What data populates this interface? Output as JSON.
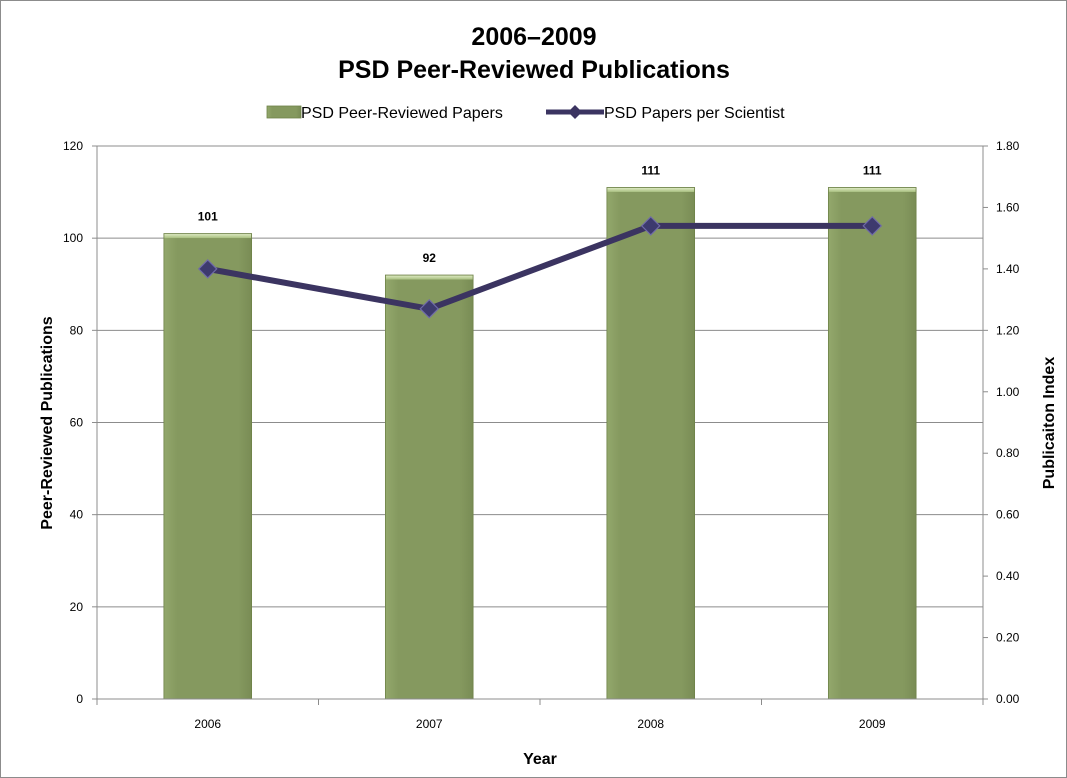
{
  "chart_data": {
    "type": "bar",
    "title": "2006–2009",
    "subtitle": "PSD Peer-Reviewed Publications",
    "xlabel": "Year",
    "ylabel": "Peer-Reviewed Publications",
    "y2label": "Publicaiton Index",
    "categories": [
      "2006",
      "2007",
      "2008",
      "2009"
    ],
    "ylim": [
      0,
      120
    ],
    "y2lim": [
      0,
      1.8
    ],
    "yticks": [
      "0",
      "20",
      "40",
      "60",
      "80",
      "100",
      "120"
    ],
    "y2ticks": [
      "0.00",
      "0.20",
      "0.40",
      "0.60",
      "0.80",
      "1.00",
      "1.20",
      "1.40",
      "1.60",
      "1.80"
    ],
    "grid": true,
    "legend_position": "top",
    "series": [
      {
        "name": "PSD Peer-Reviewed Papers",
        "type": "bar",
        "axis": "left",
        "values": [
          101,
          92,
          111,
          111
        ],
        "labels": [
          "101",
          "92",
          "111",
          "111"
        ],
        "color": "#84985f"
      },
      {
        "name": "PSD Papers per Scientist",
        "type": "line",
        "axis": "right",
        "values": [
          1.4,
          1.27,
          1.54,
          1.54
        ],
        "color": "#3b3461",
        "marker": "diamond"
      }
    ]
  }
}
